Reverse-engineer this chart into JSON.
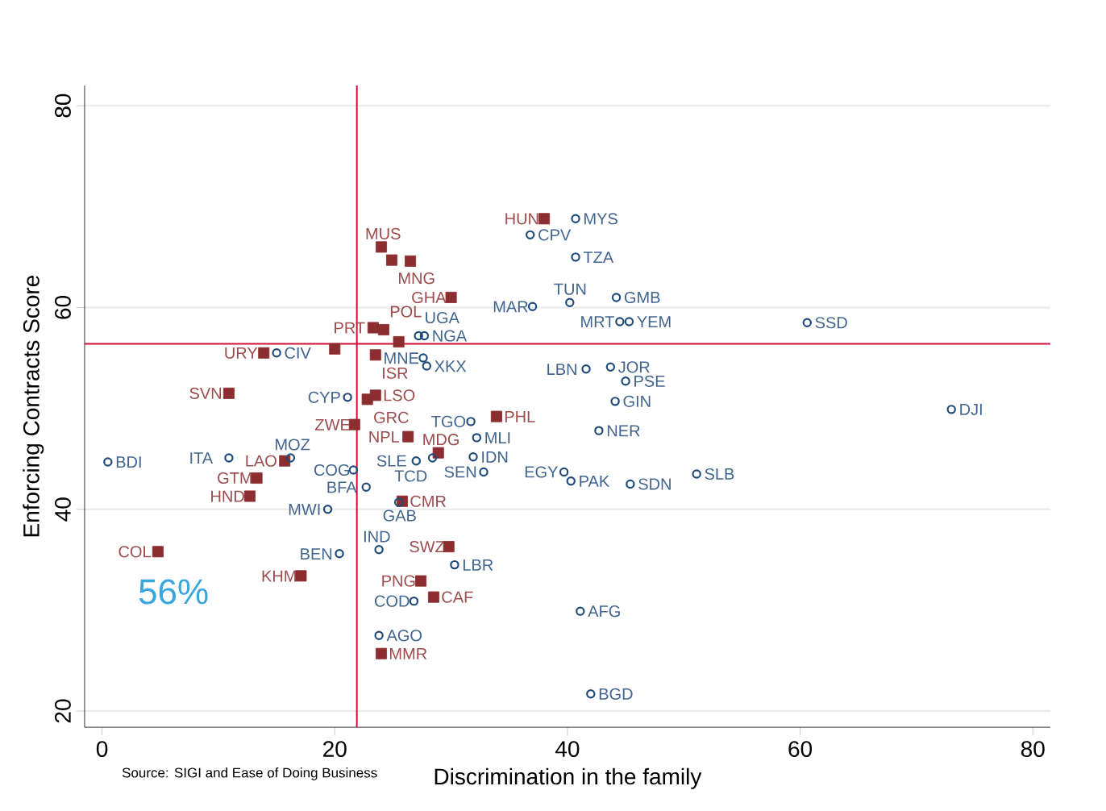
{
  "chart_data": {
    "type": "scatter",
    "xlabel": "Discrimination in the family",
    "ylabel": "Enforcing Contracts Score",
    "xlim": [
      -1.5,
      81.5
    ],
    "ylim": [
      18.4,
      82
    ],
    "xticks": [
      0,
      20,
      40,
      60,
      80
    ],
    "yticks": [
      20,
      40,
      60,
      80
    ],
    "grid": "y",
    "series": [
      {
        "marker": "square",
        "color": "#8c2d2f",
        "x": [
          38.0,
          24.0,
          24.9,
          26.5,
          30.0,
          23.3,
          24.2,
          25.5,
          23.5,
          20.0,
          13.9,
          10.9,
          22.8,
          23.5,
          21.7,
          26.3,
          28.9,
          33.9,
          15.7,
          13.3,
          12.7,
          25.8,
          4.8,
          17.1,
          29.8,
          27.4,
          28.5,
          24.0
        ],
        "values": [
          68.8,
          66.0,
          64.7,
          64.6,
          61.0,
          58.0,
          57.8,
          56.6,
          55.3,
          55.9,
          55.5,
          51.5,
          50.9,
          51.3,
          48.4,
          47.2,
          45.6,
          49.2,
          44.8,
          43.1,
          41.3,
          40.8,
          35.8,
          33.4,
          36.3,
          32.9,
          31.3,
          25.7
        ],
        "value_labels": [
          "HUN",
          "MUS",
          "MNG",
          null,
          "GHA",
          "PRT",
          "POL",
          null,
          "ISR",
          null,
          "URY",
          "SVN",
          "GRC",
          "LSO",
          "ZWE",
          "NPL",
          "MDG",
          "PHL",
          "LAO",
          "GTM",
          "HND",
          "CMR",
          "COL",
          "KHM",
          "SWZ",
          "PNG",
          "CAF",
          "MMR"
        ]
      },
      {
        "marker": "circle",
        "color": "#1f4a7a",
        "x": [
          40.7,
          36.8,
          40.7,
          37.0,
          40.2,
          44.2,
          44.5,
          45.3,
          60.6,
          41.6,
          43.7,
          45.0,
          44.1,
          73.0,
          42.7,
          39.7,
          40.3,
          45.4,
          51.1,
          31.7,
          32.2,
          31.9,
          32.8,
          27.0,
          28.4,
          21.6,
          22.7,
          19.4,
          25.5,
          20.4,
          23.8,
          30.3,
          26.8,
          23.8,
          41.1,
          42.0,
          0.5,
          10.9,
          16.2,
          15.0,
          21.1,
          27.2,
          27.7,
          27.6,
          27.9
        ],
        "values": [
          68.8,
          67.2,
          65.0,
          60.1,
          60.5,
          61.0,
          58.6,
          58.6,
          58.5,
          53.9,
          54.1,
          52.7,
          50.7,
          49.9,
          47.8,
          43.7,
          42.8,
          42.5,
          43.5,
          48.7,
          47.1,
          45.2,
          43.7,
          44.8,
          45.1,
          43.9,
          42.2,
          40.0,
          40.7,
          35.6,
          36.0,
          34.5,
          30.9,
          27.5,
          29.9,
          21.7,
          44.7,
          45.1,
          45.1,
          55.5,
          51.1,
          57.2,
          57.2,
          55.0,
          54.2
        ],
        "value_labels": [
          "MYS",
          "CPV",
          "TZA",
          "MAR",
          "TUN",
          "GMB",
          "MRT",
          "YEM",
          "SSD",
          "LBN",
          "JOR",
          "PSE",
          "GIN",
          "DJI",
          "NER",
          "EGY",
          "PAK",
          "SDN",
          "SLB",
          "TGO",
          "MLI",
          "IDN",
          "SEN",
          "SLE",
          "TCD",
          "COG",
          "BFA",
          "MWI",
          "GAB",
          "BEN",
          "IND",
          "LBR",
          "COD",
          "AGO",
          "AFG",
          "BGD",
          "BDI",
          "ITA",
          "MOZ",
          "CIV",
          "CYP",
          "UGA",
          "NGA",
          "MNE",
          "XKX"
        ]
      }
    ],
    "ref_lines": [
      {
        "axis": "x",
        "value": 21.9,
        "color": "#d0103a"
      },
      {
        "axis": "y",
        "value": 56.4,
        "color": "#d0103a"
      }
    ],
    "annotations": [
      "56%",
      "Source: SIGI and Ease of Doing Business"
    ]
  }
}
